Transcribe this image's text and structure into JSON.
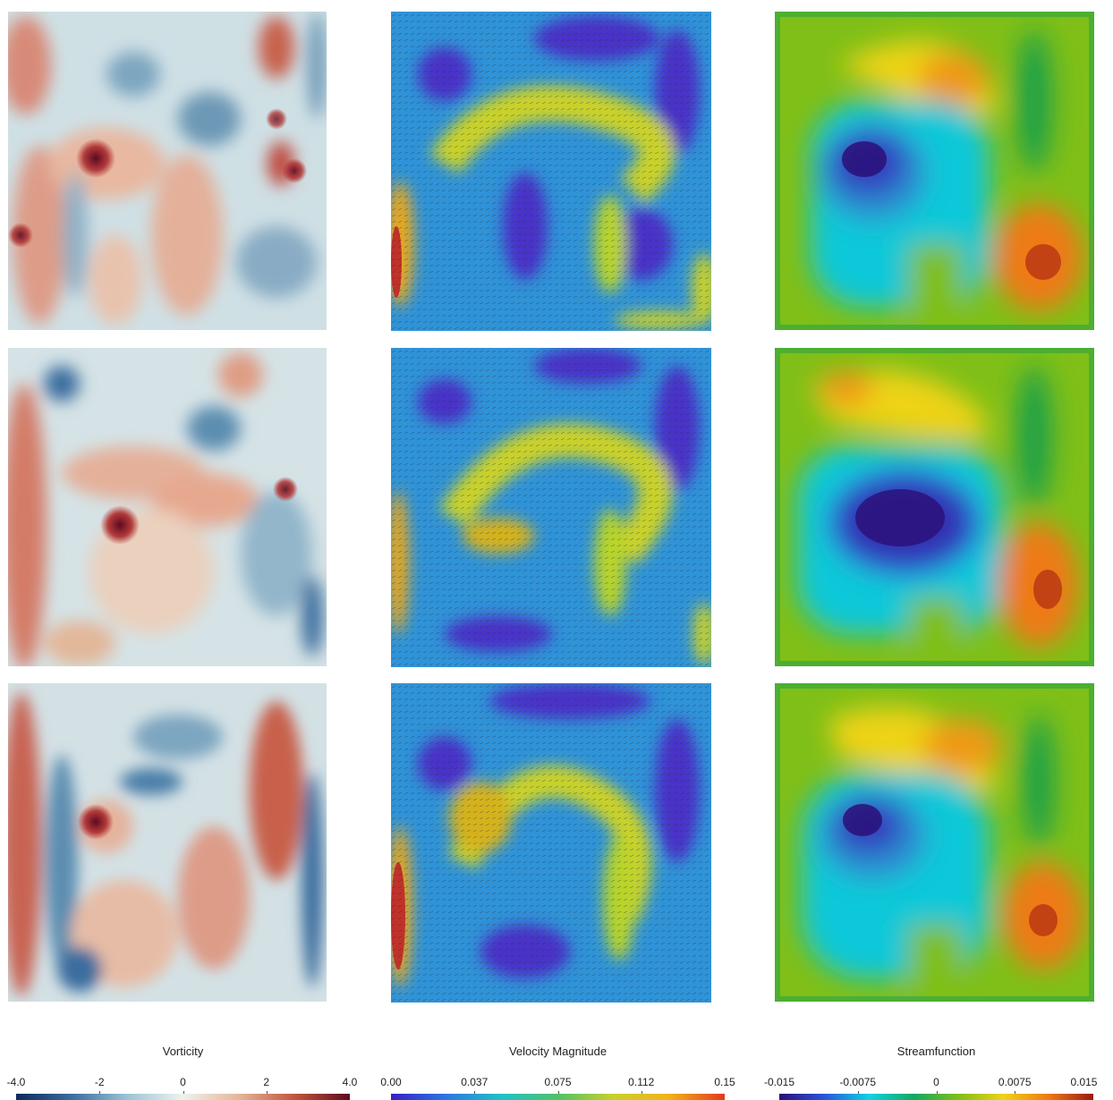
{
  "colorbars": {
    "vorticity": {
      "title": "Vorticity",
      "ticks": [
        "-4.0",
        "-2",
        "0",
        "2",
        "4.0"
      ],
      "gradient": [
        "#0b2a5b",
        "#3a6d9e",
        "#9cc4d6",
        "#eef2ee",
        "#e2b79a",
        "#c2573c",
        "#5e0a1f"
      ]
    },
    "velocity": {
      "title": "Velocity Magnitude",
      "ticks": [
        "0.00",
        "0.037",
        "0.075",
        "0.112",
        "0.15"
      ],
      "gradient": [
        "#3a1fc4",
        "#2b78e0",
        "#22c1c7",
        "#4fc268",
        "#c8d12a",
        "#f2b21a",
        "#e03a1e"
      ]
    },
    "streamfunction": {
      "title": "Streamfunction",
      "ticks": [
        "-0.015",
        "-0.0075",
        "0",
        "0.0075",
        "0.015"
      ],
      "gradient": [
        "#2a0f78",
        "#2a55d6",
        "#10d2e4",
        "#12a860",
        "#7fbf18",
        "#eed318",
        "#ee7a16",
        "#9a1a12"
      ]
    }
  }
}
